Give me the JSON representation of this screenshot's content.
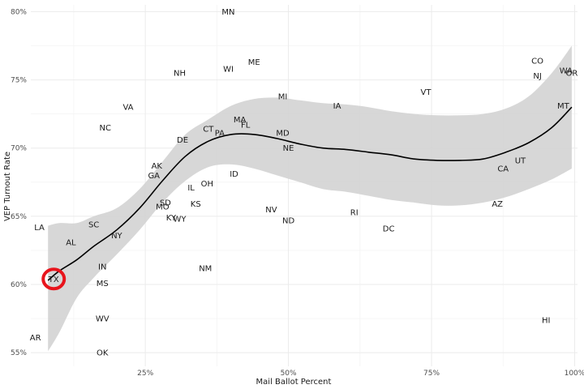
{
  "chart_data": {
    "type": "scatter",
    "xlabel": "Mail Ballot Percent",
    "ylabel": "VEP Turnout Rate",
    "xlim": [
      0.05,
      1.005
    ],
    "ylim": [
      0.54,
      0.805
    ],
    "x_ticks": [
      {
        "value": 0.25,
        "label": "25%"
      },
      {
        "value": 0.5,
        "label": "50%"
      },
      {
        "value": 0.75,
        "label": "75%"
      },
      {
        "value": 1.0,
        "label": "100%"
      }
    ],
    "y_ticks": [
      {
        "value": 0.55,
        "label": "55%"
      },
      {
        "value": 0.6,
        "label": "60%"
      },
      {
        "value": 0.65,
        "label": "65%"
      },
      {
        "value": 0.7,
        "label": "70%"
      },
      {
        "value": 0.75,
        "label": "75%"
      },
      {
        "value": 0.8,
        "label": "80%"
      }
    ],
    "grid": true,
    "points": [
      {
        "label": "MN",
        "x": 0.395,
        "y": 0.8
      },
      {
        "label": "CO",
        "x": 0.935,
        "y": 0.764
      },
      {
        "label": "WA",
        "x": 0.985,
        "y": 0.757
      },
      {
        "label": "OR",
        "x": 0.995,
        "y": 0.755
      },
      {
        "label": "NJ",
        "x": 0.935,
        "y": 0.753
      },
      {
        "label": "ME",
        "x": 0.44,
        "y": 0.763
      },
      {
        "label": "WI",
        "x": 0.395,
        "y": 0.758
      },
      {
        "label": "NH",
        "x": 0.31,
        "y": 0.755
      },
      {
        "label": "VT",
        "x": 0.74,
        "y": 0.741
      },
      {
        "label": "MI",
        "x": 0.49,
        "y": 0.738
      },
      {
        "label": "IA",
        "x": 0.585,
        "y": 0.731
      },
      {
        "label": "MT",
        "x": 0.98,
        "y": 0.731
      },
      {
        "label": "VA",
        "x": 0.22,
        "y": 0.73
      },
      {
        "label": "NC",
        "x": 0.18,
        "y": 0.715
      },
      {
        "label": "MA",
        "x": 0.415,
        "y": 0.721
      },
      {
        "label": "FL",
        "x": 0.425,
        "y": 0.717
      },
      {
        "label": "CT",
        "x": 0.36,
        "y": 0.714
      },
      {
        "label": "PA",
        "x": 0.38,
        "y": 0.711
      },
      {
        "label": "MD",
        "x": 0.49,
        "y": 0.711
      },
      {
        "label": "DE",
        "x": 0.315,
        "y": 0.706
      },
      {
        "label": "NE",
        "x": 0.5,
        "y": 0.7
      },
      {
        "label": "AK",
        "x": 0.27,
        "y": 0.687
      },
      {
        "label": "UT",
        "x": 0.905,
        "y": 0.691
      },
      {
        "label": "CA",
        "x": 0.875,
        "y": 0.685
      },
      {
        "label": "GA",
        "x": 0.265,
        "y": 0.68
      },
      {
        "label": "ID",
        "x": 0.405,
        "y": 0.681
      },
      {
        "label": "OH",
        "x": 0.358,
        "y": 0.674
      },
      {
        "label": "IL",
        "x": 0.33,
        "y": 0.671
      },
      {
        "label": "SD",
        "x": 0.285,
        "y": 0.66
      },
      {
        "label": "KS",
        "x": 0.338,
        "y": 0.659
      },
      {
        "label": "MO",
        "x": 0.28,
        "y": 0.657
      },
      {
        "label": "AZ",
        "x": 0.865,
        "y": 0.659
      },
      {
        "label": "NV",
        "x": 0.47,
        "y": 0.655
      },
      {
        "label": "RI",
        "x": 0.615,
        "y": 0.653
      },
      {
        "label": "KY",
        "x": 0.295,
        "y": 0.649
      },
      {
        "label": "WY",
        "x": 0.31,
        "y": 0.648
      },
      {
        "label": "ND",
        "x": 0.5,
        "y": 0.647
      },
      {
        "label": "LA",
        "x": 0.065,
        "y": 0.642
      },
      {
        "label": "SC",
        "x": 0.16,
        "y": 0.644
      },
      {
        "label": "DC",
        "x": 0.675,
        "y": 0.641
      },
      {
        "label": "NY",
        "x": 0.2,
        "y": 0.636
      },
      {
        "label": "AL",
        "x": 0.12,
        "y": 0.631
      },
      {
        "label": "IN",
        "x": 0.175,
        "y": 0.613
      },
      {
        "label": "NM",
        "x": 0.355,
        "y": 0.612
      },
      {
        "label": "TX",
        "x": 0.09,
        "y": 0.604
      },
      {
        "label": "MS",
        "x": 0.175,
        "y": 0.601
      },
      {
        "label": "WV",
        "x": 0.175,
        "y": 0.575
      },
      {
        "label": "HI",
        "x": 0.95,
        "y": 0.574
      },
      {
        "label": "AR",
        "x": 0.058,
        "y": 0.561
      },
      {
        "label": "OK",
        "x": 0.175,
        "y": 0.55
      }
    ],
    "smooth": {
      "x": [
        0.08,
        0.1,
        0.13,
        0.16,
        0.2,
        0.24,
        0.28,
        0.32,
        0.36,
        0.4,
        0.44,
        0.48,
        0.52,
        0.56,
        0.6,
        0.64,
        0.68,
        0.72,
        0.76,
        0.8,
        0.84,
        0.88,
        0.92,
        0.96,
        0.995
      ],
      "y": [
        0.603,
        0.61,
        0.618,
        0.628,
        0.64,
        0.656,
        0.676,
        0.694,
        0.705,
        0.71,
        0.71,
        0.707,
        0.703,
        0.7,
        0.699,
        0.697,
        0.695,
        0.692,
        0.691,
        0.691,
        0.692,
        0.697,
        0.704,
        0.715,
        0.73
      ],
      "upper": [
        0.643,
        0.645,
        0.645,
        0.65,
        0.656,
        0.67,
        0.69,
        0.71,
        0.721,
        0.731,
        0.736,
        0.737,
        0.735,
        0.733,
        0.732,
        0.73,
        0.727,
        0.725,
        0.724,
        0.724,
        0.725,
        0.729,
        0.738,
        0.755,
        0.775
      ],
      "lower": [
        0.551,
        0.565,
        0.59,
        0.605,
        0.622,
        0.64,
        0.66,
        0.676,
        0.686,
        0.688,
        0.685,
        0.68,
        0.675,
        0.67,
        0.668,
        0.665,
        0.662,
        0.66,
        0.658,
        0.658,
        0.66,
        0.664,
        0.67,
        0.677,
        0.685
      ]
    },
    "highlight": {
      "label": "TX",
      "x": 0.09,
      "y": 0.604,
      "color": "#e8141c"
    },
    "colors": {
      "line": "#000000",
      "ribbon": "#d3d3d3",
      "grid": "#ebebeb",
      "highlight": "#e8141c"
    }
  }
}
